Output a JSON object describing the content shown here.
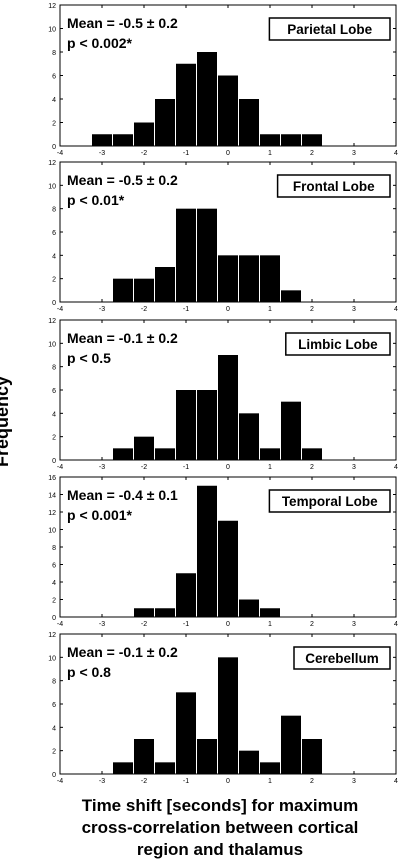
{
  "ylabel": "Frequency",
  "xlabel_lines": [
    "Time shift [seconds] for maximum",
    "cross-correlation between cortical",
    "region and thalamus"
  ],
  "chart_data": [
    {
      "type": "bar",
      "title": "Parietal Lobe",
      "stats": [
        "Mean = -0.5 ± 0.2",
        "p < 0.002*"
      ],
      "x": [
        -3,
        -2.5,
        -2,
        -1.5,
        -1,
        -0.5,
        0,
        0.5,
        1,
        1.5,
        2
      ],
      "values": [
        1,
        1,
        2,
        4,
        7,
        8,
        6,
        4,
        1,
        1,
        1
      ],
      "ylim": [
        0,
        12
      ],
      "yticks": [
        0,
        2,
        4,
        6,
        8,
        10,
        12
      ],
      "xlim": [
        -4,
        4
      ]
    },
    {
      "type": "bar",
      "title": "Frontal Lobe",
      "stats": [
        "Mean = -0.5 ± 0.2",
        "p < 0.01*"
      ],
      "x": [
        -2.5,
        -2,
        -1.5,
        -1,
        -0.5,
        0,
        0.5,
        1,
        1.5
      ],
      "values": [
        2,
        2,
        3,
        8,
        8,
        4,
        4,
        4,
        1
      ],
      "ylim": [
        0,
        12
      ],
      "yticks": [
        0,
        2,
        4,
        6,
        8,
        10,
        12
      ],
      "xlim": [
        -4,
        4
      ]
    },
    {
      "type": "bar",
      "title": "Limbic Lobe",
      "stats": [
        "Mean = -0.1 ± 0.2",
        "p < 0.5"
      ],
      "x": [
        -2.5,
        -2,
        -1.5,
        -1,
        -0.5,
        0,
        0.5,
        1,
        1.5,
        2
      ],
      "values": [
        1,
        2,
        1,
        6,
        6,
        9,
        4,
        1,
        5,
        1
      ],
      "ylim": [
        0,
        12
      ],
      "yticks": [
        0,
        2,
        4,
        6,
        8,
        10,
        12
      ],
      "xlim": [
        -4,
        4
      ]
    },
    {
      "type": "bar",
      "title": "Temporal Lobe",
      "stats": [
        "Mean = -0.4 ± 0.1",
        "p < 0.001*"
      ],
      "x": [
        -2,
        -1.5,
        -1,
        -0.5,
        0,
        0.5,
        1
      ],
      "values": [
        1,
        1,
        5,
        15,
        11,
        2,
        1
      ],
      "ylim": [
        0,
        16
      ],
      "yticks": [
        0,
        2,
        4,
        6,
        8,
        10,
        12,
        14,
        16
      ],
      "xlim": [
        -4,
        4
      ]
    },
    {
      "type": "bar",
      "title": "Cerebellum",
      "stats": [
        "Mean = -0.1 ± 0.2",
        "p < 0.8"
      ],
      "x": [
        -2.5,
        -2,
        -1.5,
        -1,
        -0.5,
        0,
        0.5,
        1,
        1.5,
        2
      ],
      "values": [
        1,
        3,
        1,
        7,
        3,
        10,
        2,
        1,
        5,
        3
      ],
      "ylim": [
        0,
        12
      ],
      "yticks": [
        0,
        2,
        4,
        6,
        8,
        10,
        12
      ],
      "xlim": [
        -4,
        4
      ]
    }
  ],
  "shared_xticks": [
    -4,
    -3,
    -2,
    -1,
    0,
    1,
    2,
    3,
    4
  ]
}
